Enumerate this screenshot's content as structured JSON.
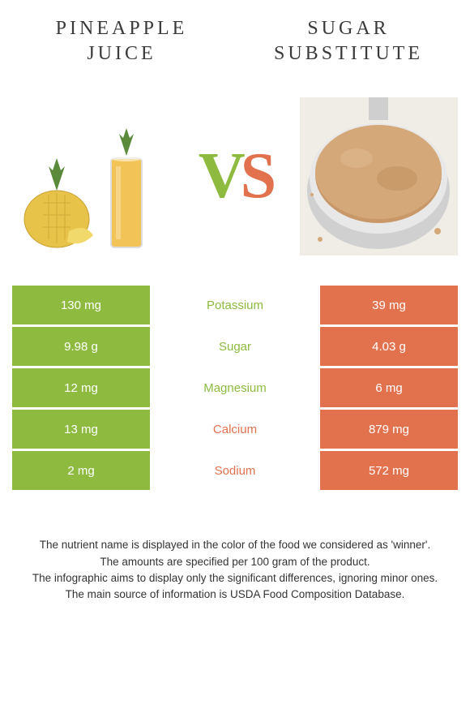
{
  "left": {
    "title": "Pineapple Juice",
    "color": "#8dba3f",
    "bg": "#f9f9f0"
  },
  "right": {
    "title": "Sugar substitute",
    "color": "#e2714e",
    "bg": "#d9cdbf"
  },
  "vs": {
    "v": "V",
    "s": "S"
  },
  "rows": [
    {
      "label": "Potassium",
      "left": "130 mg",
      "right": "39 mg",
      "winner": "left"
    },
    {
      "label": "Sugar",
      "left": "9.98 g",
      "right": "4.03 g",
      "winner": "left"
    },
    {
      "label": "Magnesium",
      "left": "12 mg",
      "right": "6 mg",
      "winner": "left"
    },
    {
      "label": "Calcium",
      "left": "13 mg",
      "right": "879 mg",
      "winner": "right"
    },
    {
      "label": "Sodium",
      "left": "2 mg",
      "right": "572 mg",
      "winner": "right"
    }
  ],
  "footer": {
    "l1": "The nutrient name is displayed in the color of the food we considered as 'winner'.",
    "l2": "The amounts are specified per 100 gram of the product.",
    "l3": "The infographic aims to display only the significant differences, ignoring minor ones.",
    "l4": "The main source of information is USDA Food Composition Database."
  }
}
